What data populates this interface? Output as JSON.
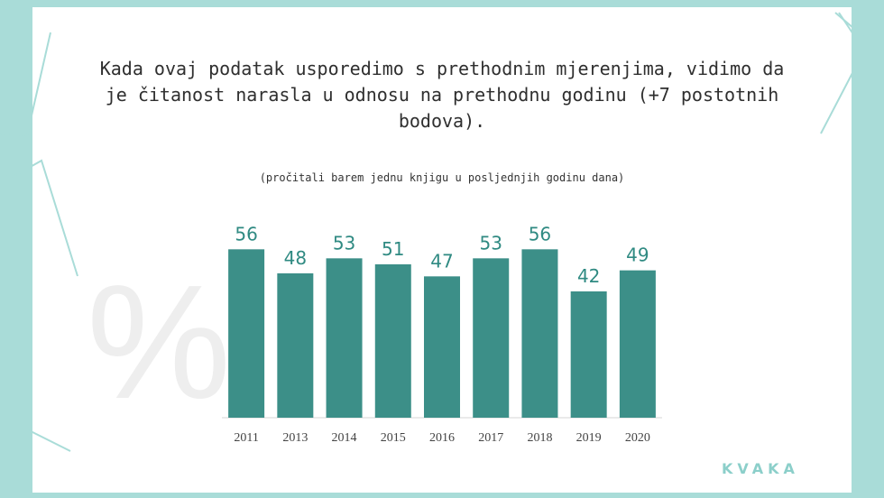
{
  "headline": "Kada ovaj podatak usporedimo s prethodnim mjerenjima, vidimo da je čitanost narasla u odnosu na prethodnu godinu (+7 postotnih bodova).",
  "watermark": "%",
  "logo": "KVAKA",
  "colors": {
    "bar": "#3c8f88",
    "label": "#2f8a82",
    "background": "#a9dcd8"
  },
  "chart_data": {
    "type": "bar",
    "title": "",
    "subtitle": "(pročitali barem jednu knjigu u posljednjih godinu dana)",
    "categories": [
      "2011",
      "2013",
      "2014",
      "2015",
      "2016",
      "2017",
      "2018",
      "2019",
      "2020"
    ],
    "values": [
      56,
      48,
      53,
      51,
      47,
      53,
      56,
      42,
      49
    ],
    "xlabel": "",
    "ylabel": "",
    "ylim": [
      0,
      60
    ],
    "grid": false,
    "legend": "none",
    "data_labels": true
  }
}
